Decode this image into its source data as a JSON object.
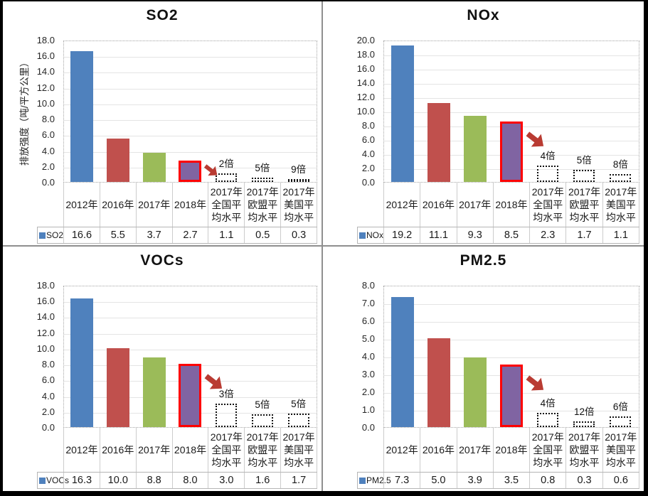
{
  "page": {
    "background": "#ffffff",
    "outer_border_color": "#000000",
    "panel_divider_color": "#8f8f8f"
  },
  "palette": {
    "bar_blue": "#4F81BD",
    "bar_red": "#C0504D",
    "bar_green": "#9BBB59",
    "bar_purple": "#8064A2",
    "highlight_border": "#FF0000",
    "arrow_red": "#B93B32",
    "legend_key_blue": "#4F81BD",
    "gridline": "#e4e4e4",
    "plot_border_dotted": "#a3a3a3",
    "table_border": "#b5b5b5"
  },
  "chart_data": [
    {
      "type": "bar",
      "title": "SO2",
      "ylabel": "排放强度（吨/平方公里）",
      "ylim": [
        0,
        18
      ],
      "ytick_step": 2,
      "y_ticks": [
        "18.0",
        "16.0",
        "14.0",
        "12.0",
        "10.0",
        "8.0",
        "6.0",
        "4.0",
        "2.0",
        "0.0"
      ],
      "categories": [
        "2012年",
        "2016年",
        "2017年",
        "2018年",
        "2017年全国平均水平",
        "2017年欧盟平均水平",
        "2017年美国平均水平"
      ],
      "values": [
        16.6,
        5.5,
        3.7,
        2.7,
        1.1,
        0.5,
        0.3
      ],
      "table_values": [
        "16.6",
        "5.5",
        "3.7",
        "2.7",
        "1.1",
        "0.5",
        "0.3"
      ],
      "series_label": "SO2",
      "solid_bars": 4,
      "highlight_index": 3,
      "dashed_box_columns": [
        4,
        5,
        6
      ],
      "multipliers": [
        "2倍",
        "5倍",
        "9倍"
      ],
      "arrow_icon": "red-arrow-down-right",
      "legend_position": "bottom-table",
      "grid": true
    },
    {
      "type": "bar",
      "title": "NOx",
      "ylabel": "",
      "ylim": [
        0,
        20
      ],
      "ytick_step": 2,
      "y_ticks": [
        "20.0",
        "18.0",
        "16.0",
        "14.0",
        "12.0",
        "10.0",
        "8.0",
        "6.0",
        "4.0",
        "2.0",
        "0.0"
      ],
      "categories": [
        "2012年",
        "2016年",
        "2017年",
        "2018年",
        "2017年全国平均水平",
        "2017年欧盟平均水平",
        "2017年美国平均水平"
      ],
      "values": [
        19.2,
        11.1,
        9.3,
        8.5,
        2.3,
        1.7,
        1.1
      ],
      "table_values": [
        "19.2",
        "11.1",
        "9.3",
        "8.5",
        "2.3",
        "1.7",
        "1.1"
      ],
      "series_label": "NOx",
      "solid_bars": 4,
      "highlight_index": 3,
      "dashed_box_columns": [
        4,
        5,
        6
      ],
      "multipliers": [
        "4倍",
        "5倍",
        "8倍"
      ],
      "arrow_icon": "red-arrow-down-right",
      "legend_position": "bottom-table",
      "grid": true
    },
    {
      "type": "bar",
      "title": "VOCs",
      "ylabel": "",
      "ylim": [
        0,
        18
      ],
      "ytick_step": 2,
      "y_ticks": [
        "18.0",
        "16.0",
        "14.0",
        "12.0",
        "10.0",
        "8.0",
        "6.0",
        "4.0",
        "2.0",
        "0.0"
      ],
      "categories": [
        "2012年",
        "2016年",
        "2017年",
        "2018年",
        "2017年全国平均水平",
        "2017年欧盟平均水平",
        "2017年美国平均水平"
      ],
      "values": [
        16.3,
        10.0,
        8.8,
        8.0,
        3.0,
        1.6,
        1.7
      ],
      "table_values": [
        "16.3",
        "10.0",
        "8.8",
        "8.0",
        "3.0",
        "1.6",
        "1.7"
      ],
      "series_label": "VOCs",
      "solid_bars": 4,
      "highlight_index": 3,
      "dashed_box_columns": [
        4,
        5,
        6
      ],
      "multipliers": [
        "3倍",
        "5倍",
        "5倍"
      ],
      "arrow_icon": "red-arrow-down-right",
      "legend_position": "bottom-table",
      "grid": true
    },
    {
      "type": "bar",
      "title": "PM2.5",
      "ylabel": "",
      "ylim": [
        0,
        8
      ],
      "ytick_step": 1,
      "y_ticks": [
        "8.0",
        "7.0",
        "6.0",
        "5.0",
        "4.0",
        "3.0",
        "2.0",
        "1.0",
        "0.0"
      ],
      "categories": [
        "2012年",
        "2016年",
        "2017年",
        "2018年",
        "2017年全国平均水平",
        "2017年欧盟平均水平",
        "2017年美国平均水平"
      ],
      "values": [
        7.3,
        5.0,
        3.9,
        3.5,
        0.8,
        0.3,
        0.6
      ],
      "table_values": [
        "7.3",
        "5.0",
        "3.9",
        "3.5",
        "0.8",
        "0.3",
        "0.6"
      ],
      "series_label": "PM2.5",
      "solid_bars": 4,
      "highlight_index": 3,
      "dashed_box_columns": [
        4,
        5,
        6
      ],
      "multipliers": [
        "4倍",
        "12倍",
        "6倍"
      ],
      "arrow_icon": "red-arrow-down-right",
      "legend_position": "bottom-table",
      "grid": true
    }
  ]
}
